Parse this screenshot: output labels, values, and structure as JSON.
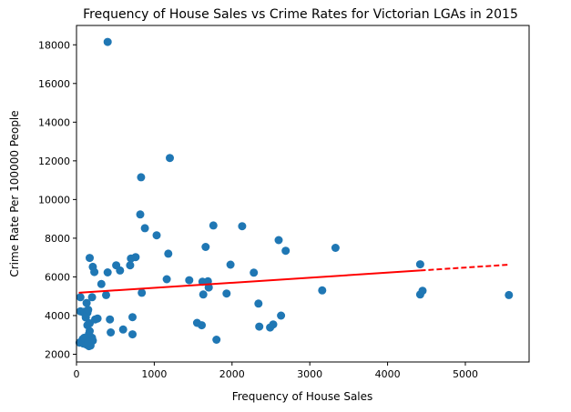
{
  "chart_data": {
    "type": "scatter",
    "title": "Frequency of House Sales vs Crime Rates for Victorian LGAs in 2015",
    "xlabel": "Frequency of House Sales",
    "ylabel": "Crime Rate Per 100000 People",
    "xlim": [
      0,
      5820
    ],
    "ylim": [
      1600,
      19000
    ],
    "xticks": [
      0,
      1000,
      2000,
      3000,
      4000,
      5000
    ],
    "yticks": [
      2000,
      4000,
      6000,
      8000,
      10000,
      12000,
      14000,
      16000,
      18000
    ],
    "grid": false,
    "marker_color": "#1f77b4",
    "trend_color": "#ff0000",
    "trendline": {
      "solid": {
        "x": [
          30,
          4420
        ],
        "y": [
          5180,
          6330
        ]
      },
      "dashed": {
        "x": [
          4420,
          5560
        ],
        "y": [
          6330,
          6630
        ]
      }
    },
    "points": [
      [
        400,
        18150
      ],
      [
        1200,
        12150
      ],
      [
        830,
        11150
      ],
      [
        820,
        9230
      ],
      [
        880,
        8520
      ],
      [
        1030,
        8150
      ],
      [
        1760,
        8660
      ],
      [
        2130,
        8620
      ],
      [
        2600,
        7900
      ],
      [
        1180,
        7200
      ],
      [
        2690,
        7350
      ],
      [
        3330,
        7500
      ],
      [
        1660,
        7550
      ],
      [
        760,
        7020
      ],
      [
        700,
        6950
      ],
      [
        690,
        6600
      ],
      [
        170,
        6980
      ],
      [
        210,
        6520
      ],
      [
        230,
        6250
      ],
      [
        400,
        6230
      ],
      [
        510,
        6600
      ],
      [
        560,
        6330
      ],
      [
        1980,
        6630
      ],
      [
        2280,
        6220
      ],
      [
        4420,
        6650
      ],
      [
        320,
        5630
      ],
      [
        1160,
        5880
      ],
      [
        1450,
        5830
      ],
      [
        1620,
        5750
      ],
      [
        1690,
        5770
      ],
      [
        1700,
        5450
      ],
      [
        50,
        4950
      ],
      [
        380,
        5060
      ],
      [
        840,
        5180
      ],
      [
        1630,
        5090
      ],
      [
        1930,
        5140
      ],
      [
        3160,
        5300
      ],
      [
        4420,
        5090
      ],
      [
        4450,
        5280
      ],
      [
        5560,
        5060
      ],
      [
        50,
        4220
      ],
      [
        80,
        4180
      ],
      [
        100,
        4200
      ],
      [
        140,
        4150
      ],
      [
        120,
        3900
      ],
      [
        140,
        3500
      ],
      [
        170,
        3600
      ],
      [
        200,
        4950
      ],
      [
        130,
        4650
      ],
      [
        150,
        4300
      ],
      [
        240,
        3800
      ],
      [
        270,
        3850
      ],
      [
        160,
        3050
      ],
      [
        170,
        3200
      ],
      [
        430,
        3800
      ],
      [
        440,
        3130
      ],
      [
        600,
        3280
      ],
      [
        720,
        3920
      ],
      [
        720,
        3030
      ],
      [
        1550,
        3620
      ],
      [
        1610,
        3500
      ],
      [
        1800,
        2750
      ],
      [
        2340,
        4620
      ],
      [
        2350,
        3430
      ],
      [
        2490,
        3380
      ],
      [
        2530,
        3540
      ],
      [
        2630,
        4000
      ],
      [
        40,
        2600
      ],
      [
        60,
        2650
      ],
      [
        80,
        2780
      ],
      [
        90,
        2550
      ],
      [
        110,
        2680
      ],
      [
        130,
        2500
      ],
      [
        160,
        2420
      ],
      [
        180,
        2450
      ],
      [
        200,
        2850
      ],
      [
        210,
        2700
      ],
      [
        100,
        2850
      ],
      [
        150,
        2620
      ]
    ]
  }
}
